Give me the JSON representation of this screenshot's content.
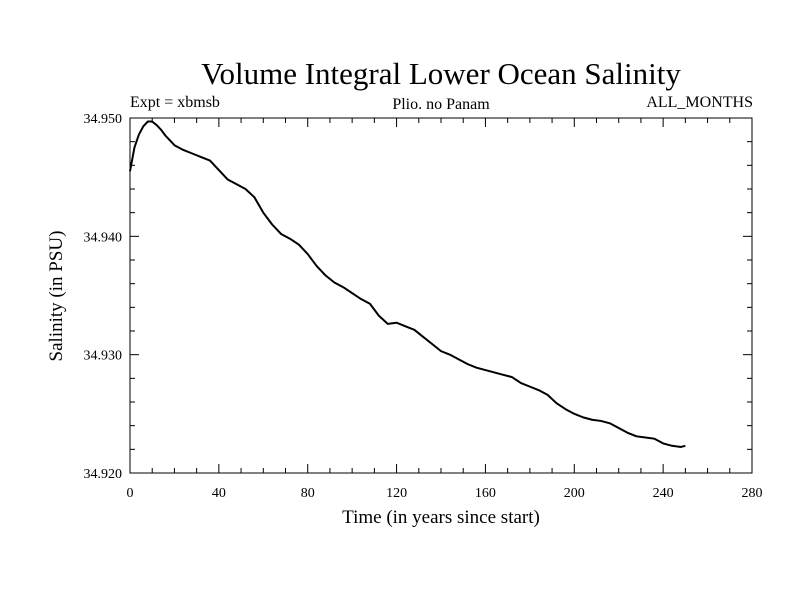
{
  "chart_data": {
    "type": "line",
    "title": "Volume Integral Lower Ocean Salinity",
    "subtitle_left": "Expt = xbmsb",
    "subtitle_center": "Plio. no Panam",
    "subtitle_right": "ALL_MONTHS",
    "xlabel": "Time (in years since start)",
    "ylabel": "Salinity (in PSU)",
    "xlim": [
      0,
      280
    ],
    "ylim": [
      34.92,
      34.95
    ],
    "xticks": [
      0,
      40,
      80,
      120,
      160,
      200,
      240,
      280
    ],
    "xtick_labels": [
      "0",
      "40",
      "80",
      "120",
      "160",
      "200",
      "240",
      "280"
    ],
    "yticks": [
      34.92,
      34.93,
      34.94,
      34.95
    ],
    "ytick_labels": [
      "34.920",
      "34.930",
      "34.940",
      "34.950"
    ],
    "grid": false,
    "series": [
      {
        "x": [
          0,
          2,
          4,
          6,
          8,
          10,
          12,
          14,
          16,
          18,
          20,
          24,
          28,
          32,
          36,
          40,
          44,
          48,
          52,
          56,
          60,
          64,
          68,
          72,
          76,
          80,
          84,
          88,
          92,
          96,
          100,
          104,
          108,
          112,
          116,
          120,
          124,
          128,
          132,
          136,
          140,
          144,
          148,
          152,
          156,
          160,
          164,
          168,
          172,
          176,
          180,
          184,
          188,
          192,
          196,
          200,
          204,
          208,
          212,
          216,
          220,
          224,
          228,
          232,
          236,
          240,
          244,
          248,
          250
        ],
        "y": [
          34.9455,
          34.9475,
          34.9486,
          34.9493,
          34.9497,
          34.9497,
          34.9494,
          34.949,
          34.9485,
          34.9481,
          34.9477,
          34.9473,
          34.947,
          34.9467,
          34.9464,
          34.9456,
          34.9448,
          34.9444,
          34.944,
          34.9433,
          34.942,
          34.941,
          34.9402,
          34.9398,
          34.9393,
          34.9385,
          34.9375,
          34.9367,
          34.9361,
          34.9357,
          34.9352,
          34.9347,
          34.9343,
          34.9333,
          34.9326,
          34.9327,
          34.9324,
          34.9321,
          34.9315,
          34.9309,
          34.9303,
          34.93,
          34.9296,
          34.9292,
          34.9289,
          34.9287,
          34.9285,
          34.9283,
          34.9281,
          34.9276,
          34.9273,
          34.927,
          34.9266,
          34.9259,
          34.9254,
          34.925,
          34.9247,
          34.9245,
          34.9244,
          34.9242,
          34.9238,
          34.9234,
          34.9231,
          34.923,
          34.9229,
          34.9225,
          34.9223,
          34.9222,
          34.9223
        ]
      }
    ]
  }
}
